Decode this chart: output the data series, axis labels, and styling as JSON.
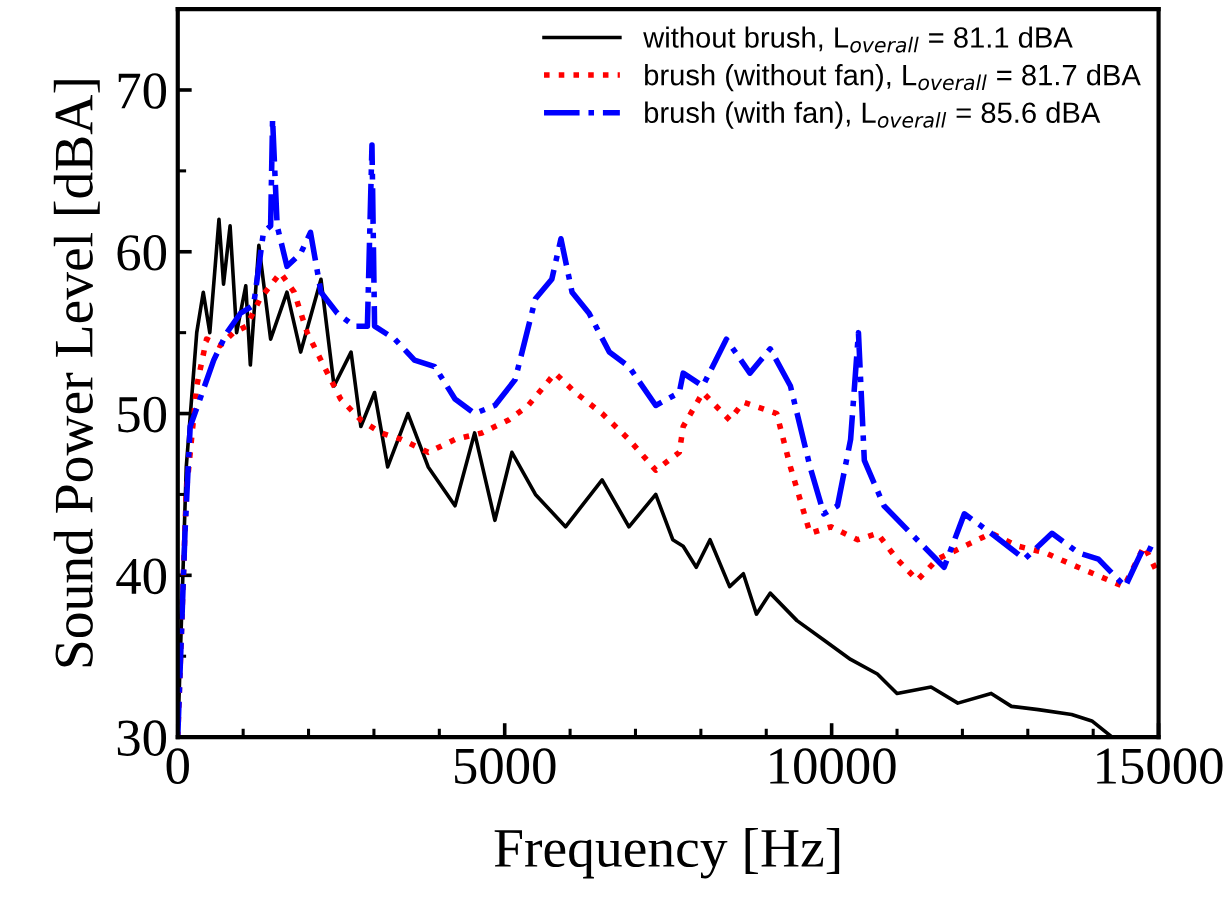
{
  "chart_data": {
    "type": "line",
    "xlabel": "Frequency [Hz]",
    "ylabel": "Sound Power Level [dBA]",
    "xlim": [
      0,
      15000
    ],
    "ylim": [
      30,
      75
    ],
    "xticks": [
      0,
      5000,
      10000,
      15000
    ],
    "yticks": [
      30,
      40,
      50,
      60,
      70
    ],
    "legend": "top right",
    "grid": false,
    "marker": "none",
    "series": [
      {
        "name": "without brush, L$_{overall}$ = 81.1 dBA",
        "color": "#000000",
        "line_style": "solid",
        "x": [
          0,
          130,
          290,
          390,
          490,
          630,
          700,
          800,
          900,
          1040,
          1110,
          1240,
          1420,
          1670,
          1880,
          2190,
          2390,
          2650,
          2800,
          3010,
          3210,
          3520,
          3830,
          4240,
          4540,
          4850,
          5110,
          5470,
          5930,
          6490,
          6900,
          7310,
          7570,
          7730,
          7930,
          8140,
          8440,
          8650,
          8850,
          9060,
          9470,
          9880,
          10290,
          10700,
          11000,
          11520,
          11930,
          12440,
          12750,
          13160,
          13670,
          13980,
          14290,
          14600
        ],
        "values": [
          30,
          46.7,
          55,
          57.5,
          55,
          62,
          58,
          61.6,
          55,
          57.9,
          53,
          60.4,
          54.6,
          57.5,
          53.8,
          58.3,
          51.7,
          53.8,
          49.2,
          51.3,
          46.7,
          50,
          46.7,
          44.3,
          48.8,
          43.4,
          47.6,
          45,
          43,
          45.9,
          43,
          45,
          42.2,
          41.8,
          40.5,
          42.2,
          39.3,
          40.1,
          37.6,
          38.9,
          37.2,
          36,
          34.8,
          33.9,
          32.7,
          33.1,
          32.1,
          32.7,
          31.9,
          31.7,
          31.4,
          31,
          30,
          30
        ]
      },
      {
        "name": "brush (without fan), L$_{overall}$ = 81.7 dBA",
        "color": "#ff0000",
        "line_style": "dotted",
        "x": [
          0,
          130,
          290,
          440,
          650,
          850,
          1050,
          1260,
          1570,
          1780,
          1980,
          2190,
          2490,
          2800,
          3110,
          3420,
          3830,
          4240,
          4650,
          5060,
          5360,
          5770,
          6080,
          6490,
          6900,
          7310,
          7670,
          7730,
          8030,
          8440,
          8650,
          9160,
          9370,
          9670,
          9990,
          10400,
          10700,
          11000,
          11310,
          11620,
          12030,
          12440,
          12850,
          13260,
          13770,
          14470,
          14780,
          14990
        ],
        "values": [
          30,
          45.1,
          51.7,
          54.6,
          54.2,
          55,
          55.4,
          57.1,
          58.7,
          57.5,
          55,
          53.3,
          50.9,
          49.6,
          48.8,
          48.4,
          47.6,
          48.4,
          48.8,
          49.6,
          50.5,
          52.5,
          51.3,
          50,
          48.4,
          46.5,
          47.6,
          49.2,
          51.3,
          49.6,
          50.7,
          50,
          46.7,
          42.6,
          43,
          42.2,
          42.6,
          41,
          39.7,
          41,
          41.8,
          42.6,
          41.8,
          41.4,
          40.5,
          39.3,
          41.8,
          40.1
        ]
      },
      {
        "name": "brush (with fan), L$_{overall}$ = 85.6 dBA",
        "color": "#0000ff",
        "line_style": "dashdot",
        "x": [
          0,
          110,
          190,
          340,
          550,
          750,
          960,
          1160,
          1310,
          1420,
          1450,
          1520,
          1670,
          1880,
          2030,
          2190,
          2440,
          2700,
          2900,
          2970,
          3010,
          3320,
          3620,
          3930,
          4240,
          4540,
          4850,
          5160,
          5470,
          5720,
          5860,
          6030,
          6290,
          6600,
          6900,
          7310,
          7670,
          7730,
          8030,
          8390,
          8750,
          9060,
          9370,
          9670,
          9880,
          10090,
          10290,
          10410,
          10500,
          10800,
          11210,
          11720,
          12030,
          12440,
          12950,
          13370,
          13770,
          14080,
          14490,
          14780,
          14990
        ],
        "values": [
          30,
          42.6,
          49.2,
          50.9,
          53.3,
          55,
          56.2,
          56.7,
          61.2,
          61.6,
          68.2,
          61.6,
          59.1,
          59.9,
          61.2,
          57.5,
          56.2,
          55.4,
          55.4,
          66.6,
          55.4,
          54.6,
          53.3,
          52.9,
          50.9,
          50,
          50.5,
          52.1,
          57.1,
          58.3,
          60.8,
          57.5,
          56.2,
          53.8,
          52.9,
          50.5,
          51.3,
          52.5,
          51.7,
          54.6,
          52.5,
          54,
          51.7,
          46.7,
          43.8,
          44.3,
          48.4,
          55,
          47.1,
          44.3,
          42.6,
          40.5,
          43.8,
          42.6,
          41,
          42.6,
          41.4,
          41,
          39.3,
          41.8,
          41.4
        ]
      }
    ]
  }
}
